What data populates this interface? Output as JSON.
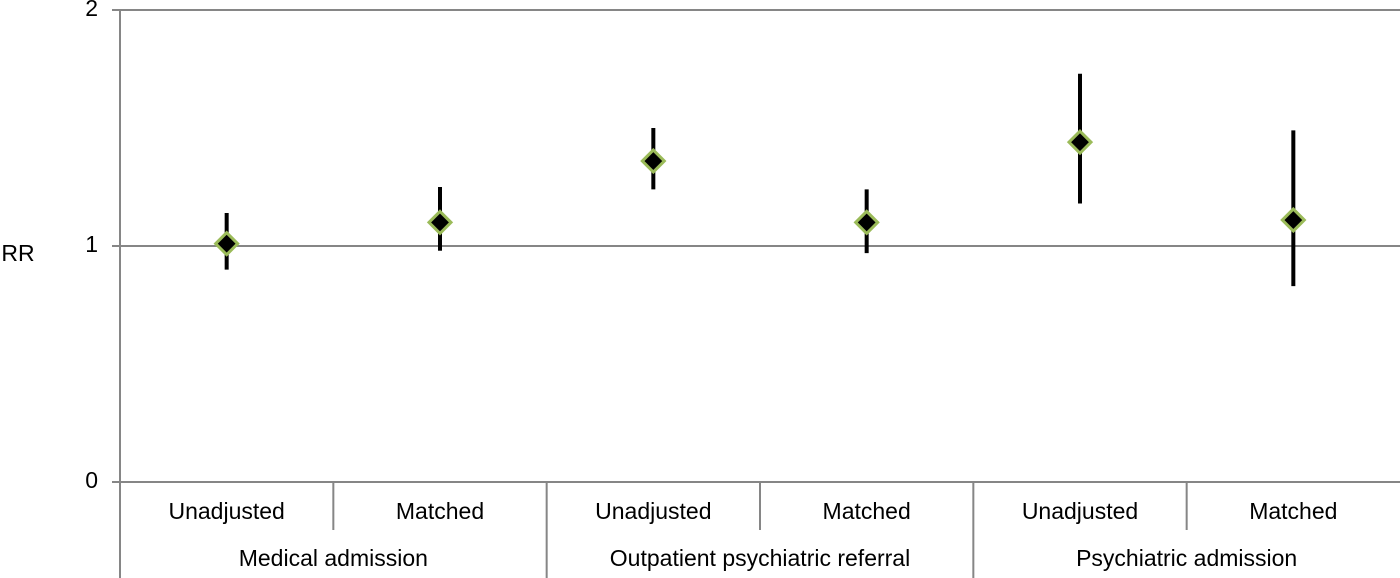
{
  "chart_data": {
    "type": "errorbar",
    "y_label": "RR",
    "groups": [
      {
        "name": "Medical admission",
        "categories": [
          "Unadjusted",
          "Matched"
        ]
      },
      {
        "name": "Outpatient psychiatric referral",
        "categories": [
          "Unadjusted",
          "Matched"
        ]
      },
      {
        "name": "Psychiatric admission",
        "categories": [
          "Unadjusted",
          "Matched"
        ]
      }
    ],
    "values": [
      1.01,
      1.1,
      1.36,
      1.1,
      1.44,
      1.11
    ],
    "lower": [
      0.9,
      0.98,
      1.24,
      0.97,
      1.18,
      0.83
    ],
    "upper": [
      1.14,
      1.25,
      1.5,
      1.24,
      1.73,
      1.49
    ],
    "marker_color": "#000000",
    "marker_edge_color": "#9bbb59",
    "error_color": "#000000",
    "ylim": [
      0,
      2
    ],
    "yticks": [
      0,
      1,
      2
    ],
    "grid": true
  }
}
